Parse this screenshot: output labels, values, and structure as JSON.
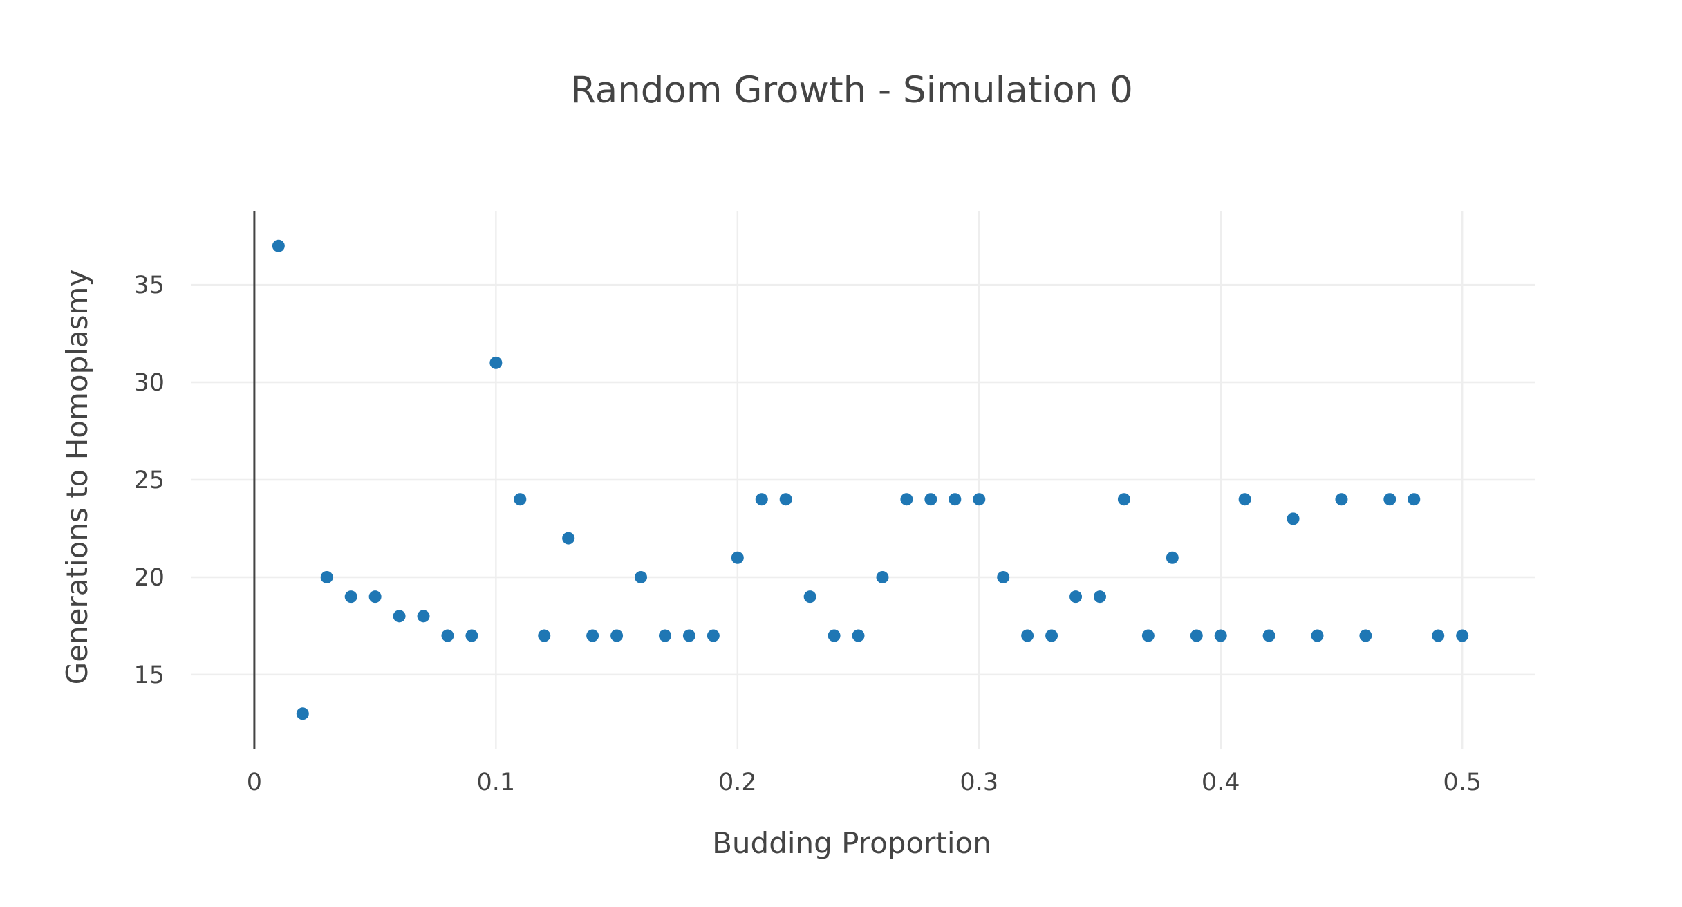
{
  "chart_data": {
    "type": "scatter",
    "title": "Random Growth - Simulation 0",
    "xlabel": "Budding Proportion",
    "ylabel": "Generations to Homoplasmy",
    "xlim": [
      -0.0263,
      0.53
    ],
    "ylim": [
      11.2,
      38.8
    ],
    "x_ticks": [
      0,
      0.1,
      0.2,
      0.3,
      0.4,
      0.5
    ],
    "x_tick_labels": [
      "0",
      "0.1",
      "0.2",
      "0.3",
      "0.4",
      "0.5"
    ],
    "y_ticks": [
      15,
      20,
      25,
      30,
      35
    ],
    "y_tick_labels": [
      "15",
      "20",
      "25",
      "30",
      "35"
    ],
    "grid": true,
    "marker_color": "#1f77b4",
    "x": [
      0.01,
      0.02,
      0.03,
      0.04,
      0.05,
      0.06,
      0.07,
      0.08,
      0.09,
      0.1,
      0.11,
      0.12,
      0.13,
      0.14,
      0.15,
      0.16,
      0.17,
      0.18,
      0.19,
      0.2,
      0.21,
      0.22,
      0.23,
      0.24,
      0.25,
      0.26,
      0.27,
      0.28,
      0.29,
      0.3,
      0.31,
      0.32,
      0.33,
      0.34,
      0.35,
      0.36,
      0.37,
      0.38,
      0.39,
      0.4,
      0.41,
      0.42,
      0.43,
      0.44,
      0.45,
      0.46,
      0.47,
      0.48,
      0.49,
      0.5
    ],
    "y": [
      37,
      13,
      20,
      19,
      19,
      18,
      18,
      17,
      17,
      31,
      24,
      17,
      22,
      17,
      17,
      20,
      17,
      17,
      17,
      21,
      24,
      24,
      19,
      17,
      17,
      20,
      24,
      24,
      24,
      24,
      20,
      17,
      17,
      19,
      19,
      24,
      17,
      21,
      17,
      17,
      24,
      17,
      23,
      17,
      24,
      17,
      24,
      24,
      17,
      17
    ]
  }
}
